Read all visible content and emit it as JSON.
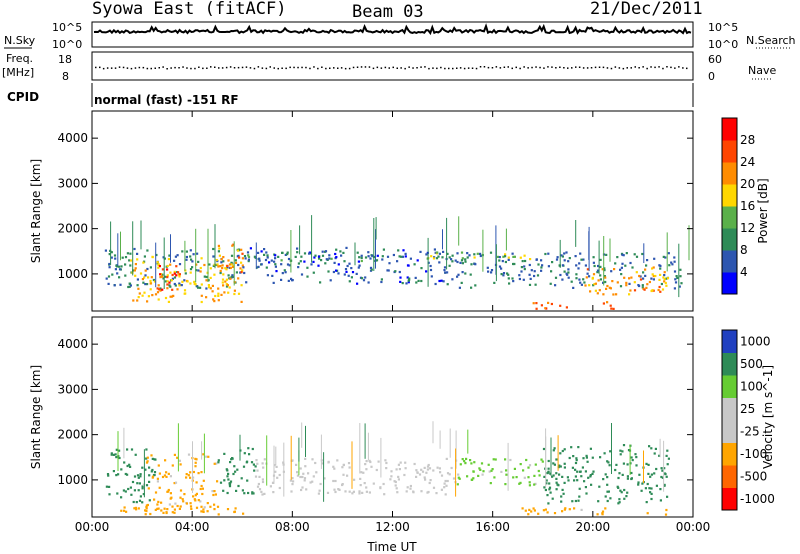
{
  "header": {
    "title": "Syowa East (fitACF)",
    "beam": "Beam 03",
    "date": "21/Dec/2011"
  },
  "strip_nsky": {
    "left_label": "N.Sky",
    "right_label": "N.Search",
    "left_ticks": [
      "10^5",
      "10^0"
    ],
    "right_ticks": [
      "10^5",
      "10^0"
    ]
  },
  "strip_freq": {
    "left_label_1": "Freq.",
    "left_label_2": "[MHz]",
    "right_label": "Nave",
    "left_ticks": [
      "18",
      "8"
    ],
    "right_ticks": [
      "60",
      "0"
    ]
  },
  "cpid": {
    "label": "CPID",
    "mode": "normal (fast) -151 RF"
  },
  "colors": {
    "power": [
      "#0000ff",
      "#2d56b0",
      "#2e8b57",
      "#5ab04a",
      "#ffd700",
      "#ff8c00",
      "#ff4500",
      "#ff0000"
    ],
    "velocity": [
      "#ff0000",
      "#ff6600",
      "#ffa500",
      "#c8c8c8",
      "#c8c8c8",
      "#66cc33",
      "#2e8b57",
      "#2040c0"
    ]
  },
  "chart_data": [
    {
      "type": "heatmap",
      "title": "",
      "xlabel": "Time UT",
      "ylabel": "Slant Range [km]",
      "xlim": [
        "00:00",
        "24:00"
      ],
      "ylim": [
        180,
        4600
      ],
      "x_ticks": [
        "00:00",
        "04:00",
        "08:00",
        "12:00",
        "16:00",
        "20:00",
        "00:00"
      ],
      "y_ticks": [
        "1000",
        "2000",
        "3000",
        "4000"
      ],
      "colorbar": {
        "label": "Power [dB]",
        "ticks": [
          "4",
          "8",
          "12",
          "16",
          "20",
          "24",
          "28"
        ],
        "range": [
          0,
          30
        ]
      },
      "regions": [
        {
          "t": [
            0.5,
            6.0
          ],
          "r": [
            700,
            1600
          ],
          "value": 8
        },
        {
          "t": [
            1.5,
            6.0
          ],
          "r": [
            400,
            1400
          ],
          "value": 18
        },
        {
          "t": [
            2.5,
            3.5
          ],
          "r": [
            600,
            1200
          ],
          "value": 26
        },
        {
          "t": [
            5.0,
            6.0
          ],
          "r": [
            800,
            1700
          ],
          "value": 20
        },
        {
          "t": [
            6.0,
            11.5
          ],
          "r": [
            1300,
            1500
          ],
          "value": 10
        },
        {
          "t": [
            6.0,
            14.0
          ],
          "r": [
            800,
            1600
          ],
          "value": 6
        },
        {
          "t": [
            13.0,
            17.5
          ],
          "r": [
            1350,
            1500
          ],
          "value": 14
        },
        {
          "t": [
            14.0,
            23.5
          ],
          "r": [
            700,
            1500
          ],
          "value": 7
        },
        {
          "t": [
            17.5,
            21.0
          ],
          "r": [
            250,
            400
          ],
          "value": 24
        },
        {
          "t": [
            19.5,
            23.0
          ],
          "r": [
            550,
            1200
          ],
          "value": 20
        }
      ]
    },
    {
      "type": "heatmap",
      "title": "",
      "xlabel": "Time UT",
      "ylabel": "Slant Range [km]",
      "xlim": [
        "00:00",
        "24:00"
      ],
      "ylim": [
        180,
        4600
      ],
      "x_ticks": [
        "00:00",
        "04:00",
        "08:00",
        "12:00",
        "16:00",
        "20:00",
        "00:00"
      ],
      "y_ticks": [
        "1000",
        "2000",
        "3000",
        "4000"
      ],
      "colorbar": {
        "label": "Velocity [m s^-1]",
        "ticks": [
          "-1000",
          "-500",
          "-100",
          "-25",
          "25",
          "100",
          "500",
          "1000"
        ]
      },
      "regions": [
        {
          "t": [
            0.5,
            2.5
          ],
          "r": [
            500,
            1700
          ],
          "value": 200
        },
        {
          "t": [
            2.0,
            5.0
          ],
          "r": [
            300,
            1600
          ],
          "value": -150
        },
        {
          "t": [
            5.0,
            6.5
          ],
          "r": [
            700,
            1800
          ],
          "value": 200
        },
        {
          "t": [
            6.5,
            14.5
          ],
          "r": [
            700,
            1500
          ],
          "value": 0
        },
        {
          "t": [
            1.0,
            6.0
          ],
          "r": [
            250,
            450
          ],
          "value": -300
        },
        {
          "t": [
            14.5,
            18.0
          ],
          "r": [
            900,
            1500
          ],
          "value": 50
        },
        {
          "t": [
            18.0,
            23.0
          ],
          "r": [
            500,
            1800
          ],
          "value": 200
        },
        {
          "t": [
            17.0,
            23.0
          ],
          "r": [
            250,
            400
          ],
          "value": -150
        }
      ]
    }
  ]
}
